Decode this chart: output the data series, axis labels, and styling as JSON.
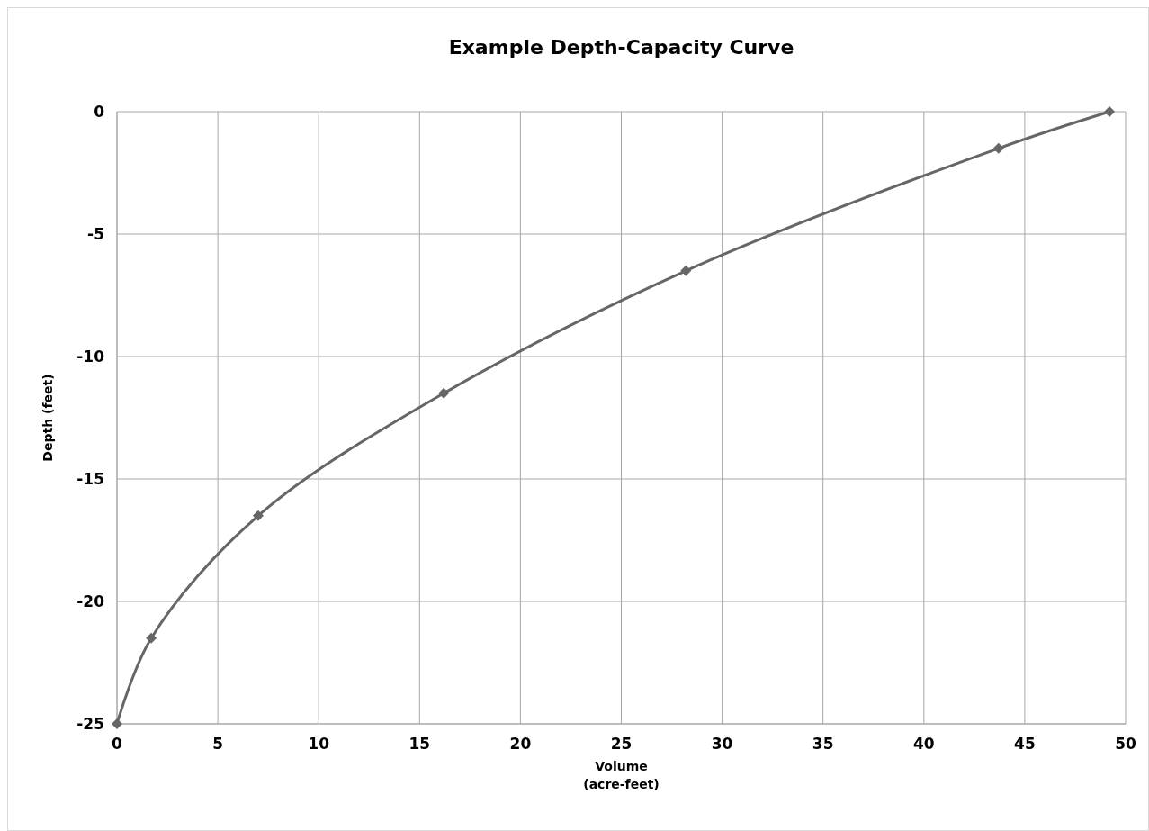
{
  "chart_data": {
    "type": "line",
    "title": "Example Depth-Capacity Curve",
    "xlabel": "Volume\n(acre-feet)",
    "ylabel": "Depth (feet)",
    "x": [
      0,
      1.7,
      7.0,
      16.2,
      28.2,
      43.7,
      49.2
    ],
    "series": [
      {
        "color": "#666666",
        "values": [
          -25,
          -21.5,
          -16.5,
          -11.5,
          -6.5,
          -1.5,
          0
        ]
      }
    ],
    "xlim": [
      0,
      50
    ],
    "xticks": [
      0,
      5,
      10,
      15,
      20,
      25,
      30,
      35,
      40,
      45,
      50
    ],
    "ylim": [
      -25,
      0
    ],
    "yticks": [
      -25,
      -20,
      -15,
      -10,
      -5,
      0
    ],
    "grid": true,
    "marker": "diamond",
    "line_style": "solid"
  }
}
